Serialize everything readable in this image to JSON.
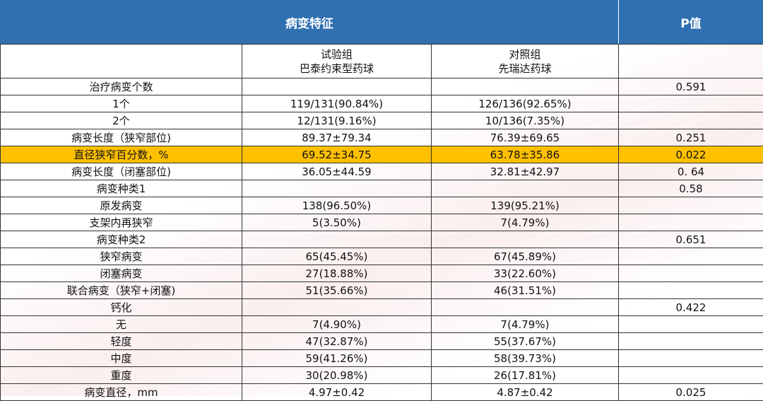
{
  "header": {
    "title": "病变特征",
    "p_title": "P值"
  },
  "subheader": {
    "test_group": "试验组",
    "test_drug": "巴泰约束型药球",
    "control_group": "对照组",
    "control_drug": "先瑞达药球"
  },
  "table": {
    "rows": [
      {
        "label": "治疗病变个数",
        "p": "0.591"
      },
      {
        "label": "1个",
        "test": "119/131(90.84%)",
        "control": "126/136(92.65%)"
      },
      {
        "label": "2个",
        "test": "12/131(9.16%)",
        "control": "10/136(7.35%)"
      },
      {
        "label": "病变长度（狭窄部位)",
        "test": "89.37±79.34",
        "control": "76.39±69.65",
        "p": "0.251"
      },
      {
        "label": "直径狭窄百分数，%",
        "test": "69.52±34.75",
        "control": "63.78±35.86",
        "p": "0.022",
        "highlight": true
      },
      {
        "label": "病变长度（闭塞部位)",
        "test": "36.05±44.59",
        "control": "32.81±42.97",
        "p": "0. 64"
      },
      {
        "label": "病变种类1",
        "p": "0.58"
      },
      {
        "label": "原发病变",
        "test": "138(96.50%)",
        "control": "139(95.21%)"
      },
      {
        "label": "支架内再狭窄",
        "test": "5(3.50%)",
        "control": "7(4.79%)"
      },
      {
        "label": "病变种类2",
        "p": "0.651"
      },
      {
        "label": "狭窄病变",
        "test": "65(45.45%)",
        "control": "67(45.89%)"
      },
      {
        "label": "闭塞病变",
        "test": "27(18.88%)",
        "control": "33(22.60%)"
      },
      {
        "label": "联合病变（狭窄+闭塞)",
        "test": "51(35.66%)",
        "control": "46(31.51%)"
      },
      {
        "label": "钙化",
        "p": "0.422"
      },
      {
        "label": "无",
        "test": "7(4.90%)",
        "control": "7(4.79%)"
      },
      {
        "label": "轻度",
        "test": "47(32.87%)",
        "control": "55(37.67%)"
      },
      {
        "label": "中度",
        "test": "59(41.26%)",
        "control": "58(39.73%)"
      },
      {
        "label": "重度",
        "test": "30(20.98%)",
        "control": "26(17.81%)"
      },
      {
        "label": "病变直径，mm",
        "test": "4.97±0.42",
        "control": "4.87±0.42",
        "p": "0.025"
      }
    ]
  }
}
